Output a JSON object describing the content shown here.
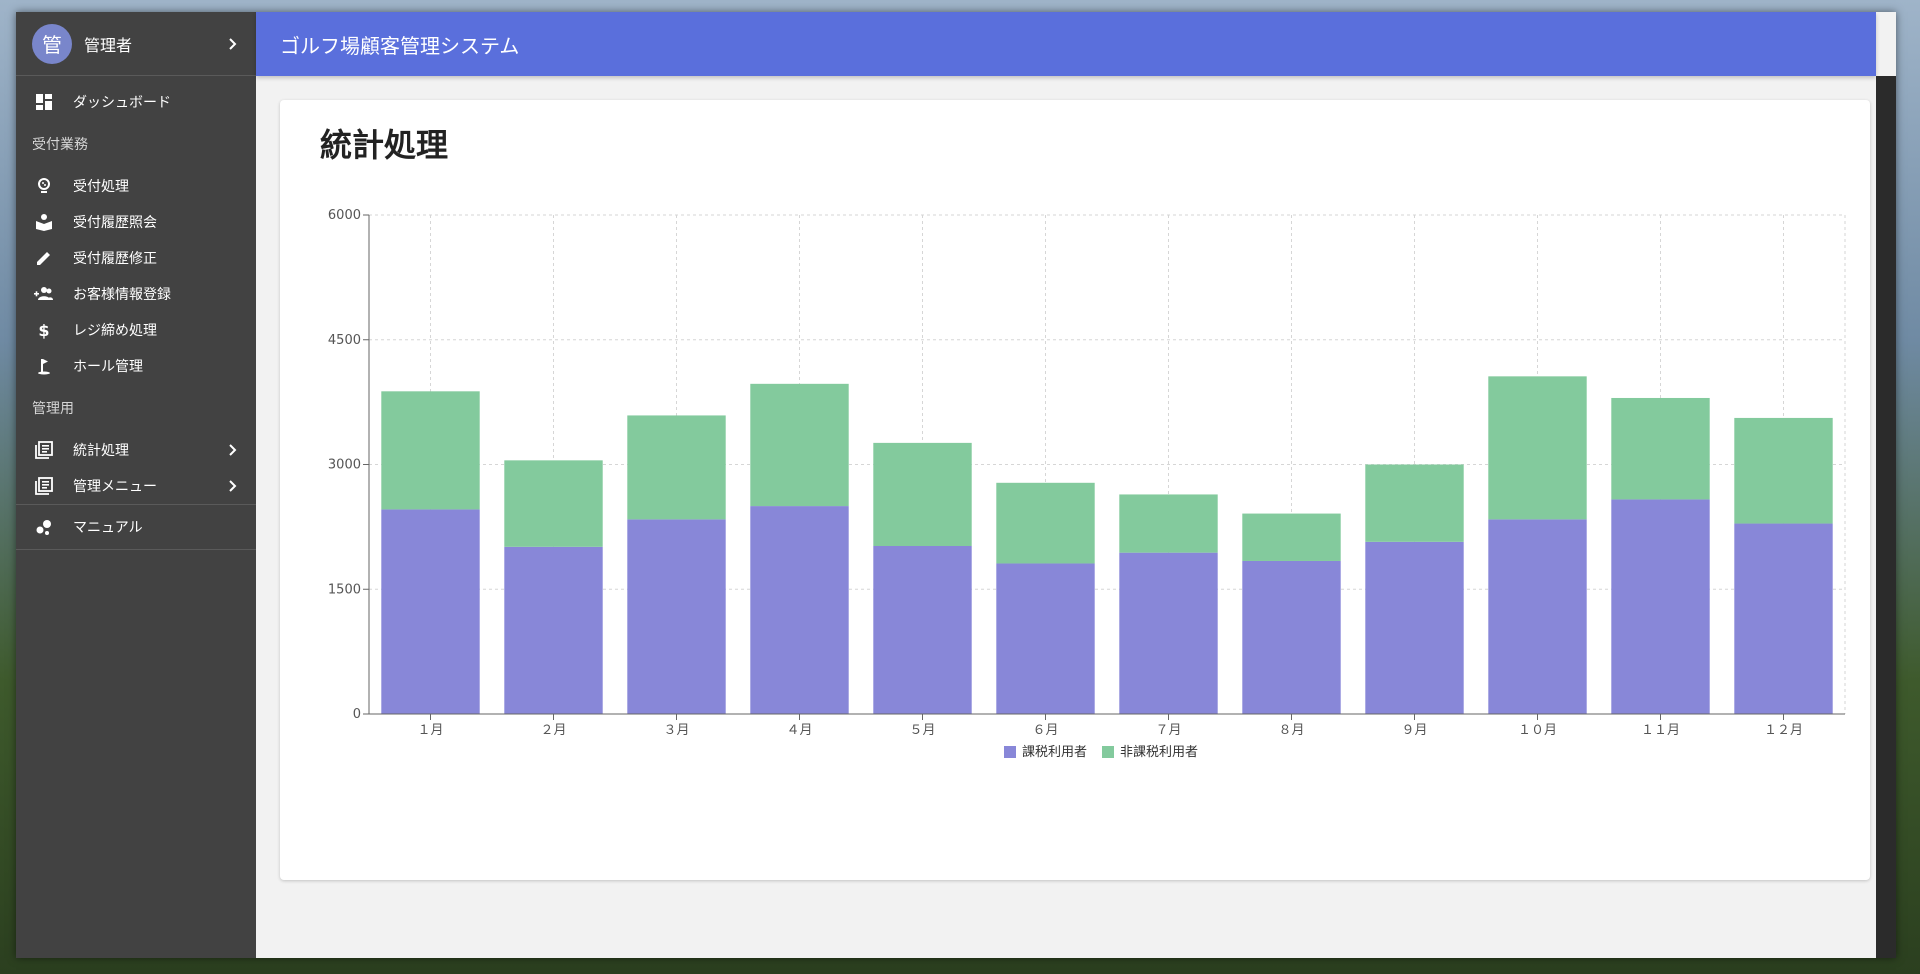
{
  "app": {
    "title": "ゴルフ場顧客管理システム"
  },
  "user": {
    "avatar_initial": "管",
    "name": "管理者"
  },
  "sidebar": {
    "top_item": {
      "label": "ダッシュボード",
      "icon": "dashboard-icon"
    },
    "sections": [
      {
        "header": "受付業務",
        "items": [
          {
            "label": "受付処理",
            "icon": "golf-ball-icon"
          },
          {
            "label": "受付履歴照会",
            "icon": "book-icon"
          },
          {
            "label": "受付履歴修正",
            "icon": "pencil-icon"
          },
          {
            "label": "お客様情報登録",
            "icon": "add-people-icon"
          },
          {
            "label": "レジ締め処理",
            "icon": "dollar-icon"
          },
          {
            "label": "ホール管理",
            "icon": "golf-flag-icon"
          }
        ]
      },
      {
        "header": "管理用",
        "items": [
          {
            "label": "統計処理",
            "icon": "library-books-icon",
            "has_chevron": true
          },
          {
            "label": "管理メニュー",
            "icon": "library-books-icon",
            "has_chevron": true
          }
        ]
      }
    ],
    "bottom_item": {
      "label": "マニュアル",
      "icon": "bubble-chart-icon"
    }
  },
  "page": {
    "title": "統計処理"
  },
  "colors": {
    "topbar": "#5a6fdc",
    "sidebar": "#424242",
    "series_taxed": "#8887d8",
    "series_nontaxed": "#83ca9d"
  },
  "chart_data": {
    "type": "bar",
    "stacked": true,
    "categories": [
      "１月",
      "２月",
      "３月",
      "４月",
      "５月",
      "６月",
      "７月",
      "８月",
      "９月",
      "１０月",
      "１１月",
      "１２月"
    ],
    "series": [
      {
        "name": "課税利用者",
        "color": "#8887d8",
        "values": [
          2460,
          2010,
          2340,
          2500,
          2020,
          1810,
          1940,
          1840,
          2070,
          2340,
          2580,
          2290
        ]
      },
      {
        "name": "非課税利用者",
        "color": "#83ca9d",
        "values": [
          1420,
          1040,
          1250,
          1470,
          1240,
          970,
          700,
          570,
          930,
          1720,
          1220,
          1270
        ]
      }
    ],
    "ylim": [
      0,
      6000
    ],
    "yticks": [
      0,
      1500,
      3000,
      4500,
      6000
    ],
    "grid": true,
    "legend": "bottom-center",
    "xlabel": "",
    "ylabel": ""
  }
}
